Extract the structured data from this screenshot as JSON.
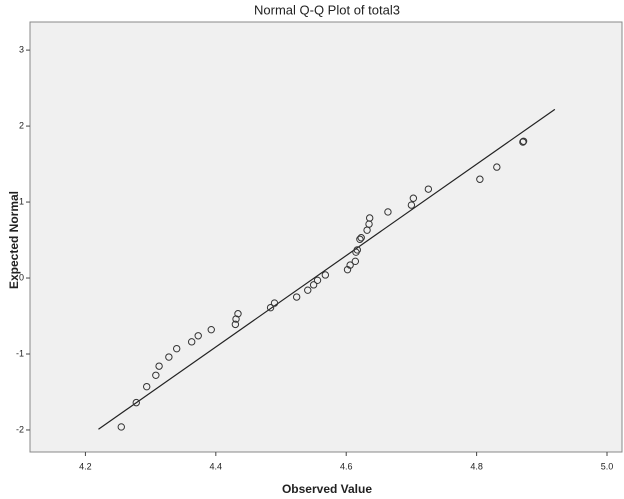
{
  "chart_data": {
    "type": "scatter",
    "title": "Normal Q-Q Plot of total3",
    "x_label": "Observed Value",
    "y_label": "Expected Normal",
    "x": [
      4.255,
      4.278,
      4.294,
      4.308,
      4.313,
      4.328,
      4.34,
      4.363,
      4.373,
      4.393,
      4.43,
      4.431,
      4.434,
      4.484,
      4.49,
      4.524,
      4.541,
      4.55,
      4.556,
      4.568,
      4.602,
      4.606,
      4.614,
      4.615,
      4.617,
      4.621,
      4.623,
      4.632,
      4.635,
      4.636,
      4.664,
      4.7,
      4.703,
      4.726,
      4.805,
      4.831,
      4.871,
      4.872
    ],
    "values": [
      -1.96,
      -1.64,
      -1.43,
      -1.28,
      -1.16,
      -1.04,
      -0.93,
      -0.84,
      -0.76,
      -0.68,
      -0.61,
      -0.54,
      -0.47,
      -0.39,
      -0.33,
      -0.25,
      -0.16,
      -0.09,
      -0.03,
      0.04,
      0.11,
      0.17,
      0.22,
      0.34,
      0.37,
      0.51,
      0.53,
      0.63,
      0.71,
      0.79,
      0.87,
      0.96,
      1.05,
      1.17,
      1.3,
      1.46,
      1.79,
      1.8
    ],
    "color": "#333333",
    "reference_line": {
      "x": [
        4.22,
        4.92
      ],
      "values": [
        -1.99,
        2.22
      ],
      "color": "#222222"
    },
    "xlim": [
      4.115,
      5.023
    ],
    "ylim": [
      -2.29,
      3.37
    ],
    "xticks": [
      4.2,
      4.4,
      4.6,
      4.8,
      {
        "value": 5,
        "label": "5.0"
      }
    ],
    "yticks": [
      -2,
      -1,
      0,
      1,
      2,
      3
    ]
  }
}
